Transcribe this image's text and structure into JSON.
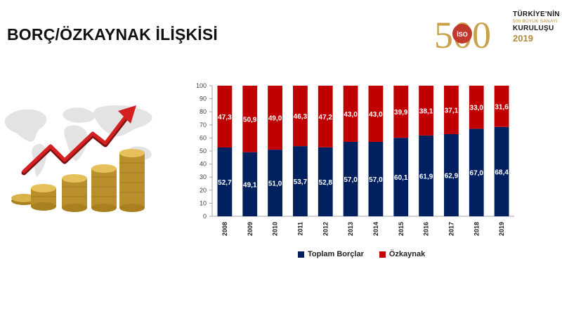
{
  "title": "BORÇ/ÖZKAYNAK İLİŞKİSİ",
  "logo": {
    "number": "500",
    "badge": "İSO",
    "line1": "TÜRKİYE'NİN",
    "line2": "500 BÜYÜK SANAYİ",
    "line3": "KURULUŞU",
    "line4": "2019"
  },
  "colors": {
    "debt": "#002060",
    "equity": "#C00000",
    "gold": "#c9a14a",
    "arrow": "#d42020"
  },
  "illustration": {
    "icons": [
      "world-map-icon",
      "trend-arrow-icon",
      "coin-stacks-icon"
    ]
  },
  "chart_data": {
    "type": "bar",
    "stacked": true,
    "categories": [
      "2008",
      "2009",
      "2010",
      "2011",
      "2012",
      "2013",
      "2014",
      "2015",
      "2016",
      "2017",
      "2018",
      "2019"
    ],
    "series": [
      {
        "name": "Toplam Borçlar",
        "color": "#002060",
        "values": [
          52.7,
          49.1,
          51.0,
          53.7,
          52.8,
          57.0,
          57.0,
          60.1,
          61.9,
          62.9,
          67.0,
          68.4
        ]
      },
      {
        "name": "Özkaynak",
        "color": "#C00000",
        "values": [
          47.3,
          50.9,
          49.0,
          46.3,
          47.2,
          43.0,
          43.0,
          39.9,
          38.1,
          37.1,
          33.0,
          31.6
        ]
      }
    ],
    "data_labels": [
      [
        "52,7",
        "49,1",
        "51,0",
        "53,7",
        "52,8",
        "57,0",
        "57,0",
        "60,1",
        "61,9",
        "62,9",
        "67,0",
        "68,4"
      ],
      [
        "47,3",
        "50,9",
        "49,0",
        "46,3",
        "47,2",
        "43,0",
        "43,0",
        "39,9",
        "38,1",
        "37,1",
        "33,0",
        "31,6"
      ]
    ],
    "yticks": [
      "0",
      "10",
      "20",
      "30",
      "40",
      "50",
      "60",
      "70",
      "80",
      "90",
      "100"
    ],
    "ylim": [
      0,
      100
    ],
    "grid": false,
    "legend_position": "bottom"
  }
}
